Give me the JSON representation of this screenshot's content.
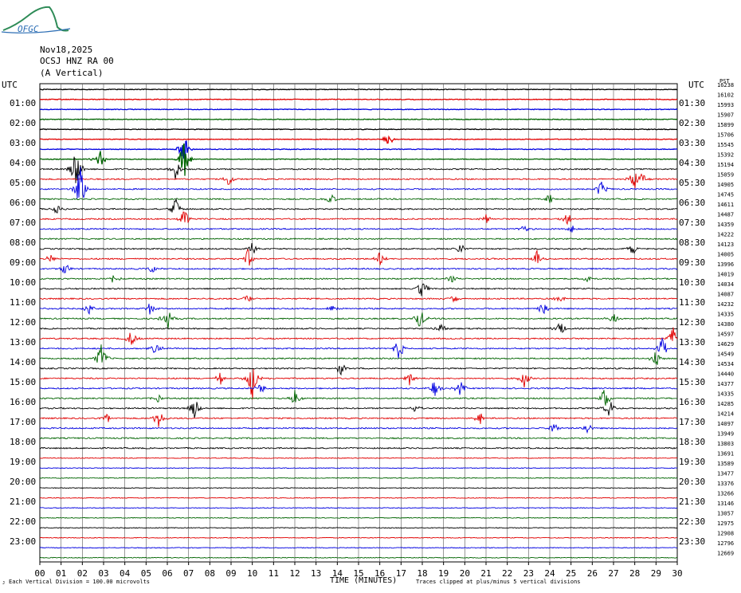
{
  "header": {
    "logo_text": "OFGC",
    "date": "Nov18,2025",
    "station": "OCSJ HNZ RA 00",
    "component": "(A Vertical)"
  },
  "left_label": "UTC",
  "right_label": "UTC",
  "right_top_label": "PST",
  "colors": {
    "trace_cycle": [
      "#000000",
      "#e00000",
      "#0000e0",
      "#006400"
    ],
    "grid": "#000000"
  },
  "footer": {
    "scale_note": "Each Vertical Division =  100.00 microvolts",
    "x_title": "TIME (MINUTES)",
    "clip_note": "Traces clipped at plus/minus 5 vertical divisions"
  },
  "chart_data": {
    "type": "line",
    "xlabel": "TIME (MINUTES)",
    "x_ticks": [
      "00",
      "01",
      "02",
      "03",
      "04",
      "05",
      "06",
      "07",
      "08",
      "09",
      "10",
      "11",
      "12",
      "13",
      "14",
      "15",
      "16",
      "17",
      "18",
      "19",
      "20",
      "21",
      "22",
      "23",
      "24",
      "25",
      "26",
      "27",
      "28",
      "29",
      "30"
    ],
    "xlim": [
      0,
      30
    ],
    "rows_count": 48,
    "left_hour_labels": [
      "01:00",
      "02:00",
      "03:00",
      "04:00",
      "05:00",
      "06:00",
      "07:00",
      "08:00",
      "09:00",
      "10:00",
      "11:00",
      "12:00",
      "13:00",
      "14:00",
      "15:00",
      "16:00",
      "17:00",
      "18:00",
      "19:00",
      "20:00",
      "21:00",
      "22:00",
      "23:00"
    ],
    "right_hour_labels": [
      "01:30",
      "02:30",
      "03:30",
      "04:30",
      "05:30",
      "06:30",
      "07:30",
      "08:30",
      "09:30",
      "10:30",
      "11:30",
      "12:30",
      "13:30",
      "14:30",
      "15:30",
      "16:30",
      "17:30",
      "18:30",
      "19:30",
      "20:30",
      "21:30",
      "22:30",
      "23:30"
    ],
    "right_counts": [
      "16238",
      "16102",
      "15993",
      "15907",
      "15899",
      "15706",
      "15545",
      "15392",
      "15194",
      "15059",
      "14905",
      "14745",
      "14611",
      "14487",
      "14359",
      "14222",
      "14123",
      "14005",
      "13996",
      "14019",
      "14034",
      "14087",
      "14232",
      "14335",
      "14380",
      "14597",
      "14629",
      "14549",
      "14534",
      "14440",
      "14377",
      "14335",
      "14285",
      "14214",
      "14097",
      "13949",
      "13803",
      "13691",
      "13589",
      "13477",
      "13376",
      "13266",
      "13146",
      "13057",
      "12975",
      "12908",
      "12796",
      "12669"
    ],
    "events": [
      {
        "row": 5,
        "x": 16.4,
        "amp": 1.0
      },
      {
        "row": 6,
        "x": 6.8,
        "amp": 2.5
      },
      {
        "row": 7,
        "x": 2.8,
        "amp": 1.5
      },
      {
        "row": 7,
        "x": 6.8,
        "amp": 2.5
      },
      {
        "row": 8,
        "x": 1.7,
        "amp": 3.0
      },
      {
        "row": 8,
        "x": 6.4,
        "amp": 1.5
      },
      {
        "row": 9,
        "x": 28.0,
        "amp": 1.5
      },
      {
        "row": 9,
        "x": 28.3,
        "amp": 1.0
      },
      {
        "row": 9,
        "x": 8.9,
        "amp": 1.0
      },
      {
        "row": 10,
        "x": 1.9,
        "amp": 3.5
      },
      {
        "row": 10,
        "x": 26.4,
        "amp": 1.2
      },
      {
        "row": 11,
        "x": 13.7,
        "amp": 0.8
      },
      {
        "row": 11,
        "x": 24.0,
        "amp": 0.7
      },
      {
        "row": 12,
        "x": 6.4,
        "amp": 1.5
      },
      {
        "row": 12,
        "x": 0.8,
        "amp": 0.6
      },
      {
        "row": 13,
        "x": 6.8,
        "amp": 1.5
      },
      {
        "row": 13,
        "x": 24.8,
        "amp": 1.0
      },
      {
        "row": 13,
        "x": 21.0,
        "amp": 0.6
      },
      {
        "row": 14,
        "x": 22.8,
        "amp": 0.5
      },
      {
        "row": 14,
        "x": 25.1,
        "amp": 0.5
      },
      {
        "row": 16,
        "x": 10.0,
        "amp": 0.8
      },
      {
        "row": 16,
        "x": 19.8,
        "amp": 0.8
      },
      {
        "row": 16,
        "x": 27.9,
        "amp": 0.8
      },
      {
        "row": 17,
        "x": 0.5,
        "amp": 0.6
      },
      {
        "row": 17,
        "x": 9.8,
        "amp": 1.2
      },
      {
        "row": 17,
        "x": 16.0,
        "amp": 1.0
      },
      {
        "row": 17,
        "x": 23.4,
        "amp": 1.0
      },
      {
        "row": 18,
        "x": 1.2,
        "amp": 0.8
      },
      {
        "row": 18,
        "x": 5.3,
        "amp": 0.6
      },
      {
        "row": 19,
        "x": 3.5,
        "amp": 0.8
      },
      {
        "row": 19,
        "x": 19.4,
        "amp": 0.5
      },
      {
        "row": 19,
        "x": 25.8,
        "amp": 0.5
      },
      {
        "row": 20,
        "x": 18.0,
        "amp": 1.5
      },
      {
        "row": 21,
        "x": 9.8,
        "amp": 0.6
      },
      {
        "row": 21,
        "x": 19.5,
        "amp": 0.6
      },
      {
        "row": 21,
        "x": 24.5,
        "amp": 0.6
      },
      {
        "row": 22,
        "x": 2.3,
        "amp": 0.8
      },
      {
        "row": 22,
        "x": 5.2,
        "amp": 0.8
      },
      {
        "row": 22,
        "x": 13.8,
        "amp": 0.6
      },
      {
        "row": 22,
        "x": 23.7,
        "amp": 1.2
      },
      {
        "row": 23,
        "x": 6.0,
        "amp": 1.5
      },
      {
        "row": 23,
        "x": 17.9,
        "amp": 1.5
      },
      {
        "row": 23,
        "x": 27.0,
        "amp": 0.8
      },
      {
        "row": 24,
        "x": 24.5,
        "amp": 1.2
      },
      {
        "row": 24,
        "x": 18.9,
        "amp": 0.8
      },
      {
        "row": 25,
        "x": 4.3,
        "amp": 1.0
      },
      {
        "row": 25,
        "x": 29.8,
        "amp": 1.5
      },
      {
        "row": 26,
        "x": 29.3,
        "amp": 1.5
      },
      {
        "row": 26,
        "x": 5.5,
        "amp": 1.0
      },
      {
        "row": 26,
        "x": 16.9,
        "amp": 1.5
      },
      {
        "row": 27,
        "x": 2.9,
        "amp": 2.0
      },
      {
        "row": 27,
        "x": 29.0,
        "amp": 1.2
      },
      {
        "row": 28,
        "x": 14.2,
        "amp": 1.0
      },
      {
        "row": 29,
        "x": 8.5,
        "amp": 0.8
      },
      {
        "row": 29,
        "x": 10.0,
        "amp": 3.0
      },
      {
        "row": 29,
        "x": 17.4,
        "amp": 1.0
      },
      {
        "row": 29,
        "x": 22.8,
        "amp": 1.0
      },
      {
        "row": 30,
        "x": 10.4,
        "amp": 0.8
      },
      {
        "row": 30,
        "x": 18.6,
        "amp": 1.2
      },
      {
        "row": 30,
        "x": 19.8,
        "amp": 1.0
      },
      {
        "row": 31,
        "x": 5.5,
        "amp": 0.8
      },
      {
        "row": 31,
        "x": 12.0,
        "amp": 1.2
      },
      {
        "row": 31,
        "x": 26.6,
        "amp": 1.5
      },
      {
        "row": 32,
        "x": 7.3,
        "amp": 1.5
      },
      {
        "row": 32,
        "x": 17.7,
        "amp": 0.8
      },
      {
        "row": 32,
        "x": 26.8,
        "amp": 1.2
      },
      {
        "row": 33,
        "x": 3.2,
        "amp": 0.6
      },
      {
        "row": 33,
        "x": 5.6,
        "amp": 1.5
      },
      {
        "row": 33,
        "x": 20.7,
        "amp": 0.8
      },
      {
        "row": 34,
        "x": 24.2,
        "amp": 0.8
      },
      {
        "row": 34,
        "x": 25.8,
        "amp": 0.8
      }
    ]
  }
}
